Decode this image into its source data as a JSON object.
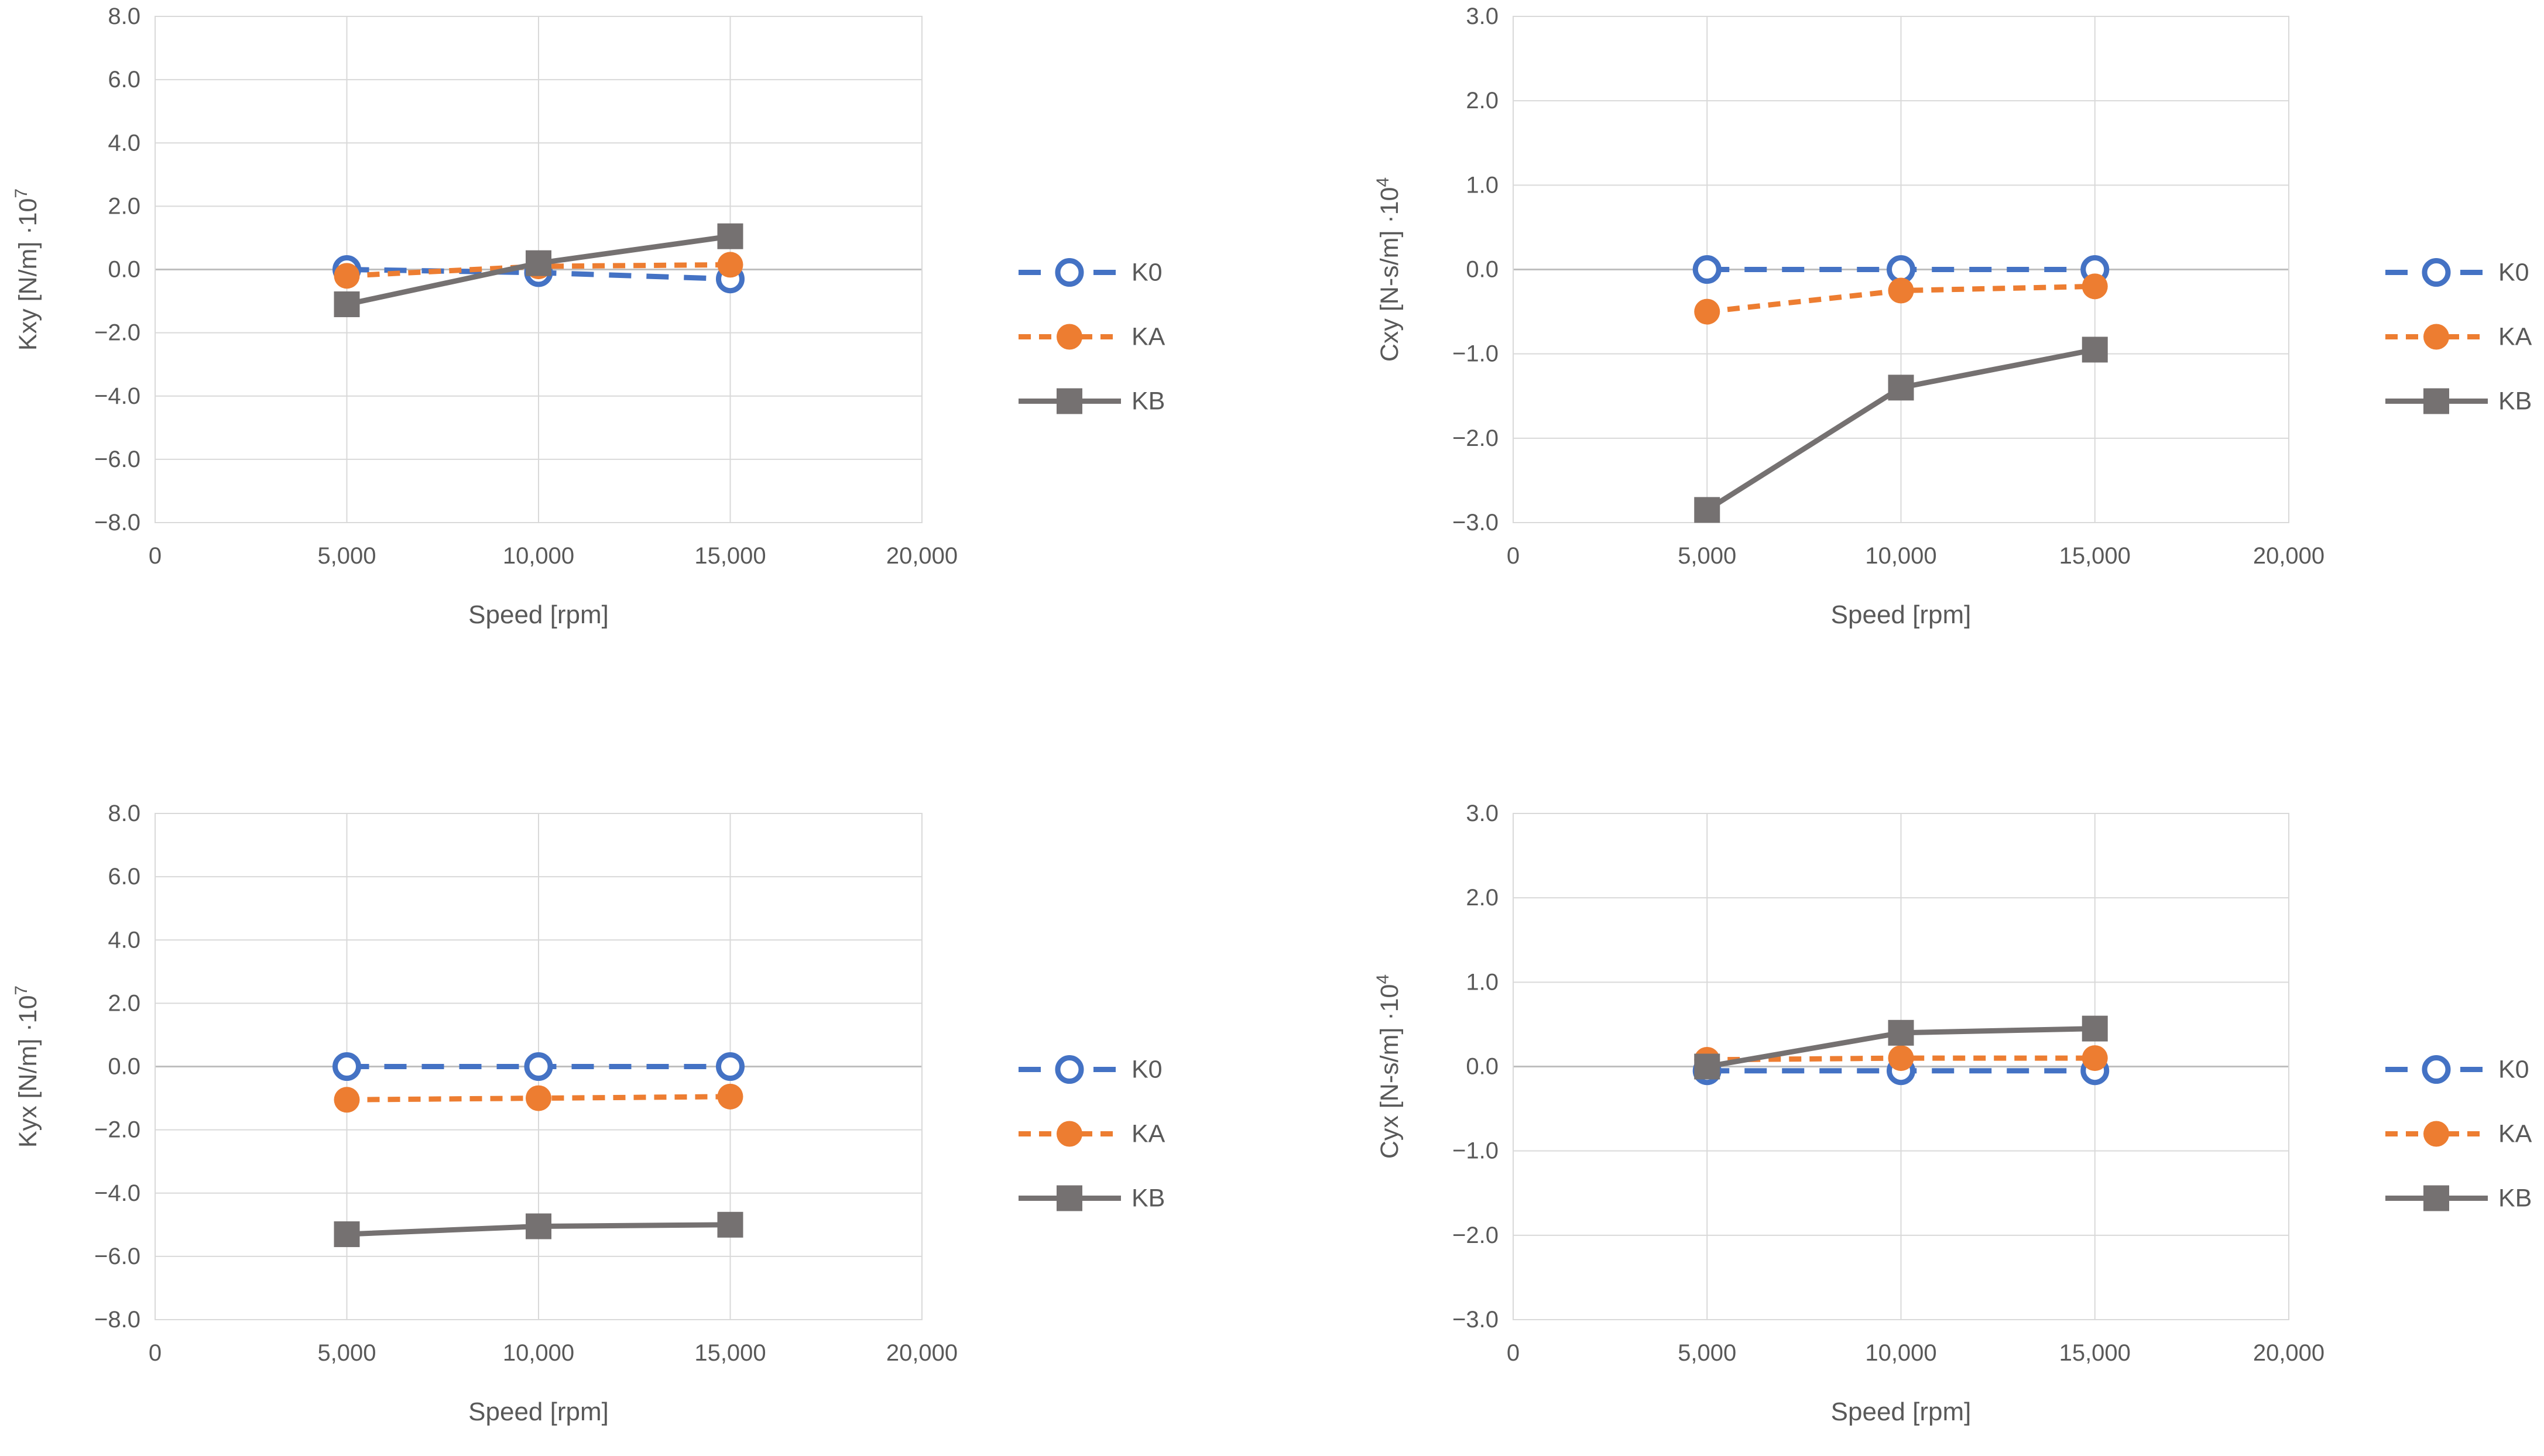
{
  "page": {
    "background": "#FFFFFF"
  },
  "colors": {
    "k0": "#4472C4",
    "ka": "#ED7D31",
    "kb": "#757171",
    "grid": "#D9D9D9",
    "zero_axis": "#BFBFBF",
    "plot_border": "#D9D9D9",
    "text": "#595959",
    "marker_fill_open": "#FFFFFF"
  },
  "legend": {
    "labels": [
      "K0",
      "KA",
      "KB"
    ],
    "position": "right"
  },
  "chart_data": [
    {
      "type": "line",
      "name": "kxy",
      "position": "top-left",
      "y_title": {
        "base": "Kxy [N/m] ·10",
        "exp": "7"
      },
      "x_title": "Speed [rpm]",
      "xlim": [
        0,
        20000
      ],
      "ylim": [
        -8,
        8
      ],
      "grid": true,
      "x_ticks": {
        "values": [
          0,
          5000,
          10000,
          15000,
          20000
        ],
        "labels": [
          "0",
          "5,000",
          "10,000",
          "15,000",
          "20,000"
        ]
      },
      "y_ticks": {
        "values": [
          8,
          6,
          4,
          2,
          0,
          -2,
          -4,
          -6,
          -8
        ],
        "labels": [
          "8.0",
          "6.0",
          "4.0",
          "2.0",
          "0.0",
          "−2.0",
          "−4.0",
          "−6.0",
          "−8.0"
        ]
      },
      "x": [
        5000,
        10000,
        15000
      ],
      "series": [
        {
          "name": "K0",
          "color_key": "k0",
          "line": "dash-long",
          "marker": "circle-open",
          "values": [
            0.0,
            -0.1,
            -0.3
          ]
        },
        {
          "name": "KA",
          "color_key": "ka",
          "line": "dash",
          "marker": "circle-filled",
          "values": [
            -0.2,
            0.1,
            0.15
          ]
        },
        {
          "name": "KB",
          "color_key": "kb",
          "line": "solid",
          "marker": "square-filled",
          "values": [
            -1.1,
            0.2,
            1.05
          ]
        }
      ]
    },
    {
      "type": "line",
      "name": "cxy",
      "position": "top-right",
      "y_title": {
        "base": "Cxy [N-s/m] ·10",
        "exp": "4"
      },
      "x_title": "Speed [rpm]",
      "xlim": [
        0,
        20000
      ],
      "ylim": [
        -3,
        3
      ],
      "grid": true,
      "x_ticks": {
        "values": [
          0,
          5000,
          10000,
          15000,
          20000
        ],
        "labels": [
          "0",
          "5,000",
          "10,000",
          "15,000",
          "20,000"
        ]
      },
      "y_ticks": {
        "values": [
          3,
          2,
          1,
          0,
          -1,
          -2,
          -3
        ],
        "labels": [
          "3.0",
          "2.0",
          "1.0",
          "0.0",
          "−1.0",
          "−2.0",
          "−3.0"
        ]
      },
      "x": [
        5000,
        10000,
        15000
      ],
      "series": [
        {
          "name": "K0",
          "color_key": "k0",
          "line": "dash-long",
          "marker": "circle-open",
          "values": [
            0.0,
            0.0,
            0.0
          ]
        },
        {
          "name": "KA",
          "color_key": "ka",
          "line": "dash",
          "marker": "circle-filled",
          "values": [
            -0.5,
            -0.25,
            -0.2
          ]
        },
        {
          "name": "KB",
          "color_key": "kb",
          "line": "solid",
          "marker": "square-filled",
          "values": [
            -2.85,
            -1.4,
            -0.95
          ]
        }
      ]
    },
    {
      "type": "line",
      "name": "kyx",
      "position": "bottom-left",
      "y_title": {
        "base": "Kyx [N/m] ·10",
        "exp": "7"
      },
      "x_title": "Speed [rpm]",
      "xlim": [
        0,
        20000
      ],
      "ylim": [
        -8,
        8
      ],
      "grid": true,
      "x_ticks": {
        "values": [
          0,
          5000,
          10000,
          15000,
          20000
        ],
        "labels": [
          "0",
          "5,000",
          "10,000",
          "15,000",
          "20,000"
        ]
      },
      "y_ticks": {
        "values": [
          8,
          6,
          4,
          2,
          0,
          -2,
          -4,
          -6,
          -8
        ],
        "labels": [
          "8.0",
          "6.0",
          "4.0",
          "2.0",
          "0.0",
          "−2.0",
          "−4.0",
          "−6.0",
          "−8.0"
        ]
      },
      "x": [
        5000,
        10000,
        15000
      ],
      "series": [
        {
          "name": "K0",
          "color_key": "k0",
          "line": "dash-long",
          "marker": "circle-open",
          "values": [
            0.0,
            0.0,
            0.0
          ]
        },
        {
          "name": "KA",
          "color_key": "ka",
          "line": "dash",
          "marker": "circle-filled",
          "values": [
            -1.05,
            -1.0,
            -0.95
          ]
        },
        {
          "name": "KB",
          "color_key": "kb",
          "line": "solid",
          "marker": "square-filled",
          "values": [
            -5.3,
            -5.05,
            -5.0
          ]
        }
      ]
    },
    {
      "type": "line",
      "name": "cyx",
      "position": "bottom-right",
      "y_title": {
        "base": "Cyx [N-s/m] ·10",
        "exp": "4"
      },
      "x_title": "Speed [rpm]",
      "xlim": [
        0,
        20000
      ],
      "ylim": [
        -3,
        3
      ],
      "grid": true,
      "x_ticks": {
        "values": [
          0,
          5000,
          10000,
          15000,
          20000
        ],
        "labels": [
          "0",
          "5,000",
          "10,000",
          "15,000",
          "20,000"
        ]
      },
      "y_ticks": {
        "values": [
          3,
          2,
          1,
          0,
          -1,
          -2,
          -3
        ],
        "labels": [
          "3.0",
          "2.0",
          "1.0",
          "0.0",
          "−1.0",
          "−2.0",
          "−3.0"
        ]
      },
      "x": [
        5000,
        10000,
        15000
      ],
      "series": [
        {
          "name": "K0",
          "color_key": "k0",
          "line": "dash-long",
          "marker": "circle-open",
          "values": [
            -0.05,
            -0.05,
            -0.05
          ]
        },
        {
          "name": "KA",
          "color_key": "ka",
          "line": "dash",
          "marker": "circle-filled",
          "values": [
            0.08,
            0.1,
            0.1
          ]
        },
        {
          "name": "KB",
          "color_key": "kb",
          "line": "solid",
          "marker": "square-filled",
          "values": [
            0.0,
            0.4,
            0.45
          ]
        }
      ]
    }
  ]
}
